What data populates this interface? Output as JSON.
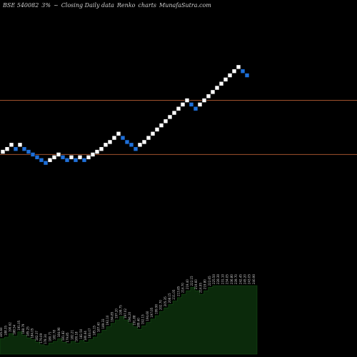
{
  "header": {
    "symbol": "BSE 540082",
    "change": "3%",
    "arrow": "~",
    "description": "Closing Daily data",
    "chart_name": "Renko",
    "charts_word": "charts",
    "site": "MunafaSutra.com"
  },
  "colors": {
    "background": "#000000",
    "up_brick": "#ffffff",
    "down_brick": "#1e6fd9",
    "level_line": "#a0522d",
    "volume_fill": "#0b2a0b",
    "volume_label": "#cfcfcf"
  },
  "chart_data": {
    "type": "renko",
    "title": "BSE 540082 3% ~ Closing Daily data Renko charts MunafaSutra.com",
    "horizontal_levels": [
      223,
      184
    ],
    "bricks": [
      {
        "dir": "up",
        "value": 186
      },
      {
        "dir": "up",
        "value": 188
      },
      {
        "dir": "up",
        "value": 191
      },
      {
        "dir": "down",
        "value": 188
      },
      {
        "dir": "up",
        "value": 191
      },
      {
        "dir": "down",
        "value": 188
      },
      {
        "dir": "down",
        "value": 186
      },
      {
        "dir": "down",
        "value": 184
      },
      {
        "dir": "down",
        "value": 182
      },
      {
        "dir": "down",
        "value": 180
      },
      {
        "dir": "down",
        "value": 178
      },
      {
        "dir": "up",
        "value": 180
      },
      {
        "dir": "up",
        "value": 182
      },
      {
        "dir": "up",
        "value": 184
      },
      {
        "dir": "down",
        "value": 182
      },
      {
        "dir": "down",
        "value": 180
      },
      {
        "dir": "up",
        "value": 182
      },
      {
        "dir": "down",
        "value": 180
      },
      {
        "dir": "up",
        "value": 182
      },
      {
        "dir": "down",
        "value": 180
      },
      {
        "dir": "up",
        "value": 182
      },
      {
        "dir": "up",
        "value": 184
      },
      {
        "dir": "up",
        "value": 186
      },
      {
        "dir": "up",
        "value": 188
      },
      {
        "dir": "up",
        "value": 191
      },
      {
        "dir": "up",
        "value": 193
      },
      {
        "dir": "up",
        "value": 196
      },
      {
        "dir": "up",
        "value": 199
      },
      {
        "dir": "down",
        "value": 196
      },
      {
        "dir": "down",
        "value": 193
      },
      {
        "dir": "down",
        "value": 191
      },
      {
        "dir": "down",
        "value": 188
      },
      {
        "dir": "up",
        "value": 191
      },
      {
        "dir": "up",
        "value": 193
      },
      {
        "dir": "up",
        "value": 196
      },
      {
        "dir": "up",
        "value": 199
      },
      {
        "dir": "up",
        "value": 202
      },
      {
        "dir": "up",
        "value": 205
      },
      {
        "dir": "up",
        "value": 208
      },
      {
        "dir": "up",
        "value": 211
      },
      {
        "dir": "up",
        "value": 214
      },
      {
        "dir": "up",
        "value": 217
      },
      {
        "dir": "up",
        "value": 220
      },
      {
        "dir": "up",
        "value": 223
      },
      {
        "dir": "down",
        "value": 220
      },
      {
        "dir": "down",
        "value": 217
      },
      {
        "dir": "up",
        "value": 220
      },
      {
        "dir": "up",
        "value": 223
      },
      {
        "dir": "up",
        "value": 226
      },
      {
        "dir": "up",
        "value": 229
      },
      {
        "dir": "up",
        "value": 232
      },
      {
        "dir": "up",
        "value": 235
      },
      {
        "dir": "up",
        "value": 238
      },
      {
        "dir": "up",
        "value": 241
      },
      {
        "dir": "up",
        "value": 244
      },
      {
        "dir": "up",
        "value": 247
      },
      {
        "dir": "down",
        "value": 244
      },
      {
        "dir": "down",
        "value": 241
      }
    ],
    "volume_profile": [
      {
        "label": "185.60",
        "level": 0.18
      },
      {
        "label": "188.35",
        "level": 0.2
      },
      {
        "label": "190.62",
        "level": 0.24
      },
      {
        "label": "188.54",
        "level": 0.21
      },
      {
        "label": "191.05",
        "level": 0.26
      },
      {
        "label": "188.79",
        "level": 0.22
      },
      {
        "label": "185.25",
        "level": 0.19
      },
      {
        "label": "184.05",
        "level": 0.17
      },
      {
        "label": "182.37",
        "level": 0.14
      },
      {
        "label": "179.09",
        "level": 0.11
      },
      {
        "label": "178.34",
        "level": 0.1
      },
      {
        "label": "180.71",
        "level": 0.13
      },
      {
        "label": "182.78",
        "level": 0.15
      },
      {
        "label": "184.90",
        "level": 0.18
      },
      {
        "label": "181.82",
        "level": 0.14
      },
      {
        "label": "179.85",
        "level": 0.12
      },
      {
        "label": "182.21",
        "level": 0.15
      },
      {
        "label": "180.18",
        "level": 0.13
      },
      {
        "label": "182.50",
        "level": 0.16
      },
      {
        "label": "180.64",
        "level": 0.14
      },
      {
        "label": "183.07",
        "level": 0.17
      },
      {
        "label": "185.15",
        "level": 0.2
      },
      {
        "label": "187.40",
        "level": 0.24
      },
      {
        "label": "189.33",
        "level": 0.28
      },
      {
        "label": "192.10",
        "level": 0.32
      },
      {
        "label": "194.85",
        "level": 0.36
      },
      {
        "label": "197.20",
        "level": 0.4
      },
      {
        "label": "199.75",
        "level": 0.44
      },
      {
        "label": "197.02",
        "level": 0.4
      },
      {
        "label": "194.20",
        "level": 0.36
      },
      {
        "label": "191.88",
        "level": 0.32
      },
      {
        "label": "189.40",
        "level": 0.29
      },
      {
        "label": "192.15",
        "level": 0.33
      },
      {
        "label": "194.60",
        "level": 0.37
      },
      {
        "label": "197.05",
        "level": 0.41
      },
      {
        "label": "199.90",
        "level": 0.45
      },
      {
        "label": "202.70",
        "level": 0.5
      },
      {
        "label": "205.35",
        "level": 0.54
      },
      {
        "label": "208.15",
        "level": 0.58
      },
      {
        "label": "211.05",
        "level": 0.62
      },
      {
        "label": "213.85",
        "level": 0.66
      },
      {
        "label": "216.70",
        "level": 0.7
      },
      {
        "label": "219.40",
        "level": 0.74
      },
      {
        "label": "222.15",
        "level": 0.78
      },
      {
        "label": "219.60",
        "level": 0.74
      },
      {
        "label": "216.95",
        "level": 0.7
      },
      {
        "label": "219.80",
        "level": 0.74
      },
      {
        "label": "222.65",
        "level": 0.78
      },
      {
        "label": "225.50",
        "level": 0.8
      },
      {
        "label": "228.30",
        "level": 0.8
      },
      {
        "label": "231.10",
        "level": 0.8
      },
      {
        "label": "234.05",
        "level": 0.8
      },
      {
        "label": "236.80",
        "level": 0.8
      },
      {
        "label": "239.70",
        "level": 0.8
      },
      {
        "label": "242.45",
        "level": 0.8
      },
      {
        "label": "245.20",
        "level": 0.8
      },
      {
        "label": "243.05",
        "level": 0.8
      },
      {
        "label": "240.90",
        "level": 0.8
      }
    ]
  }
}
